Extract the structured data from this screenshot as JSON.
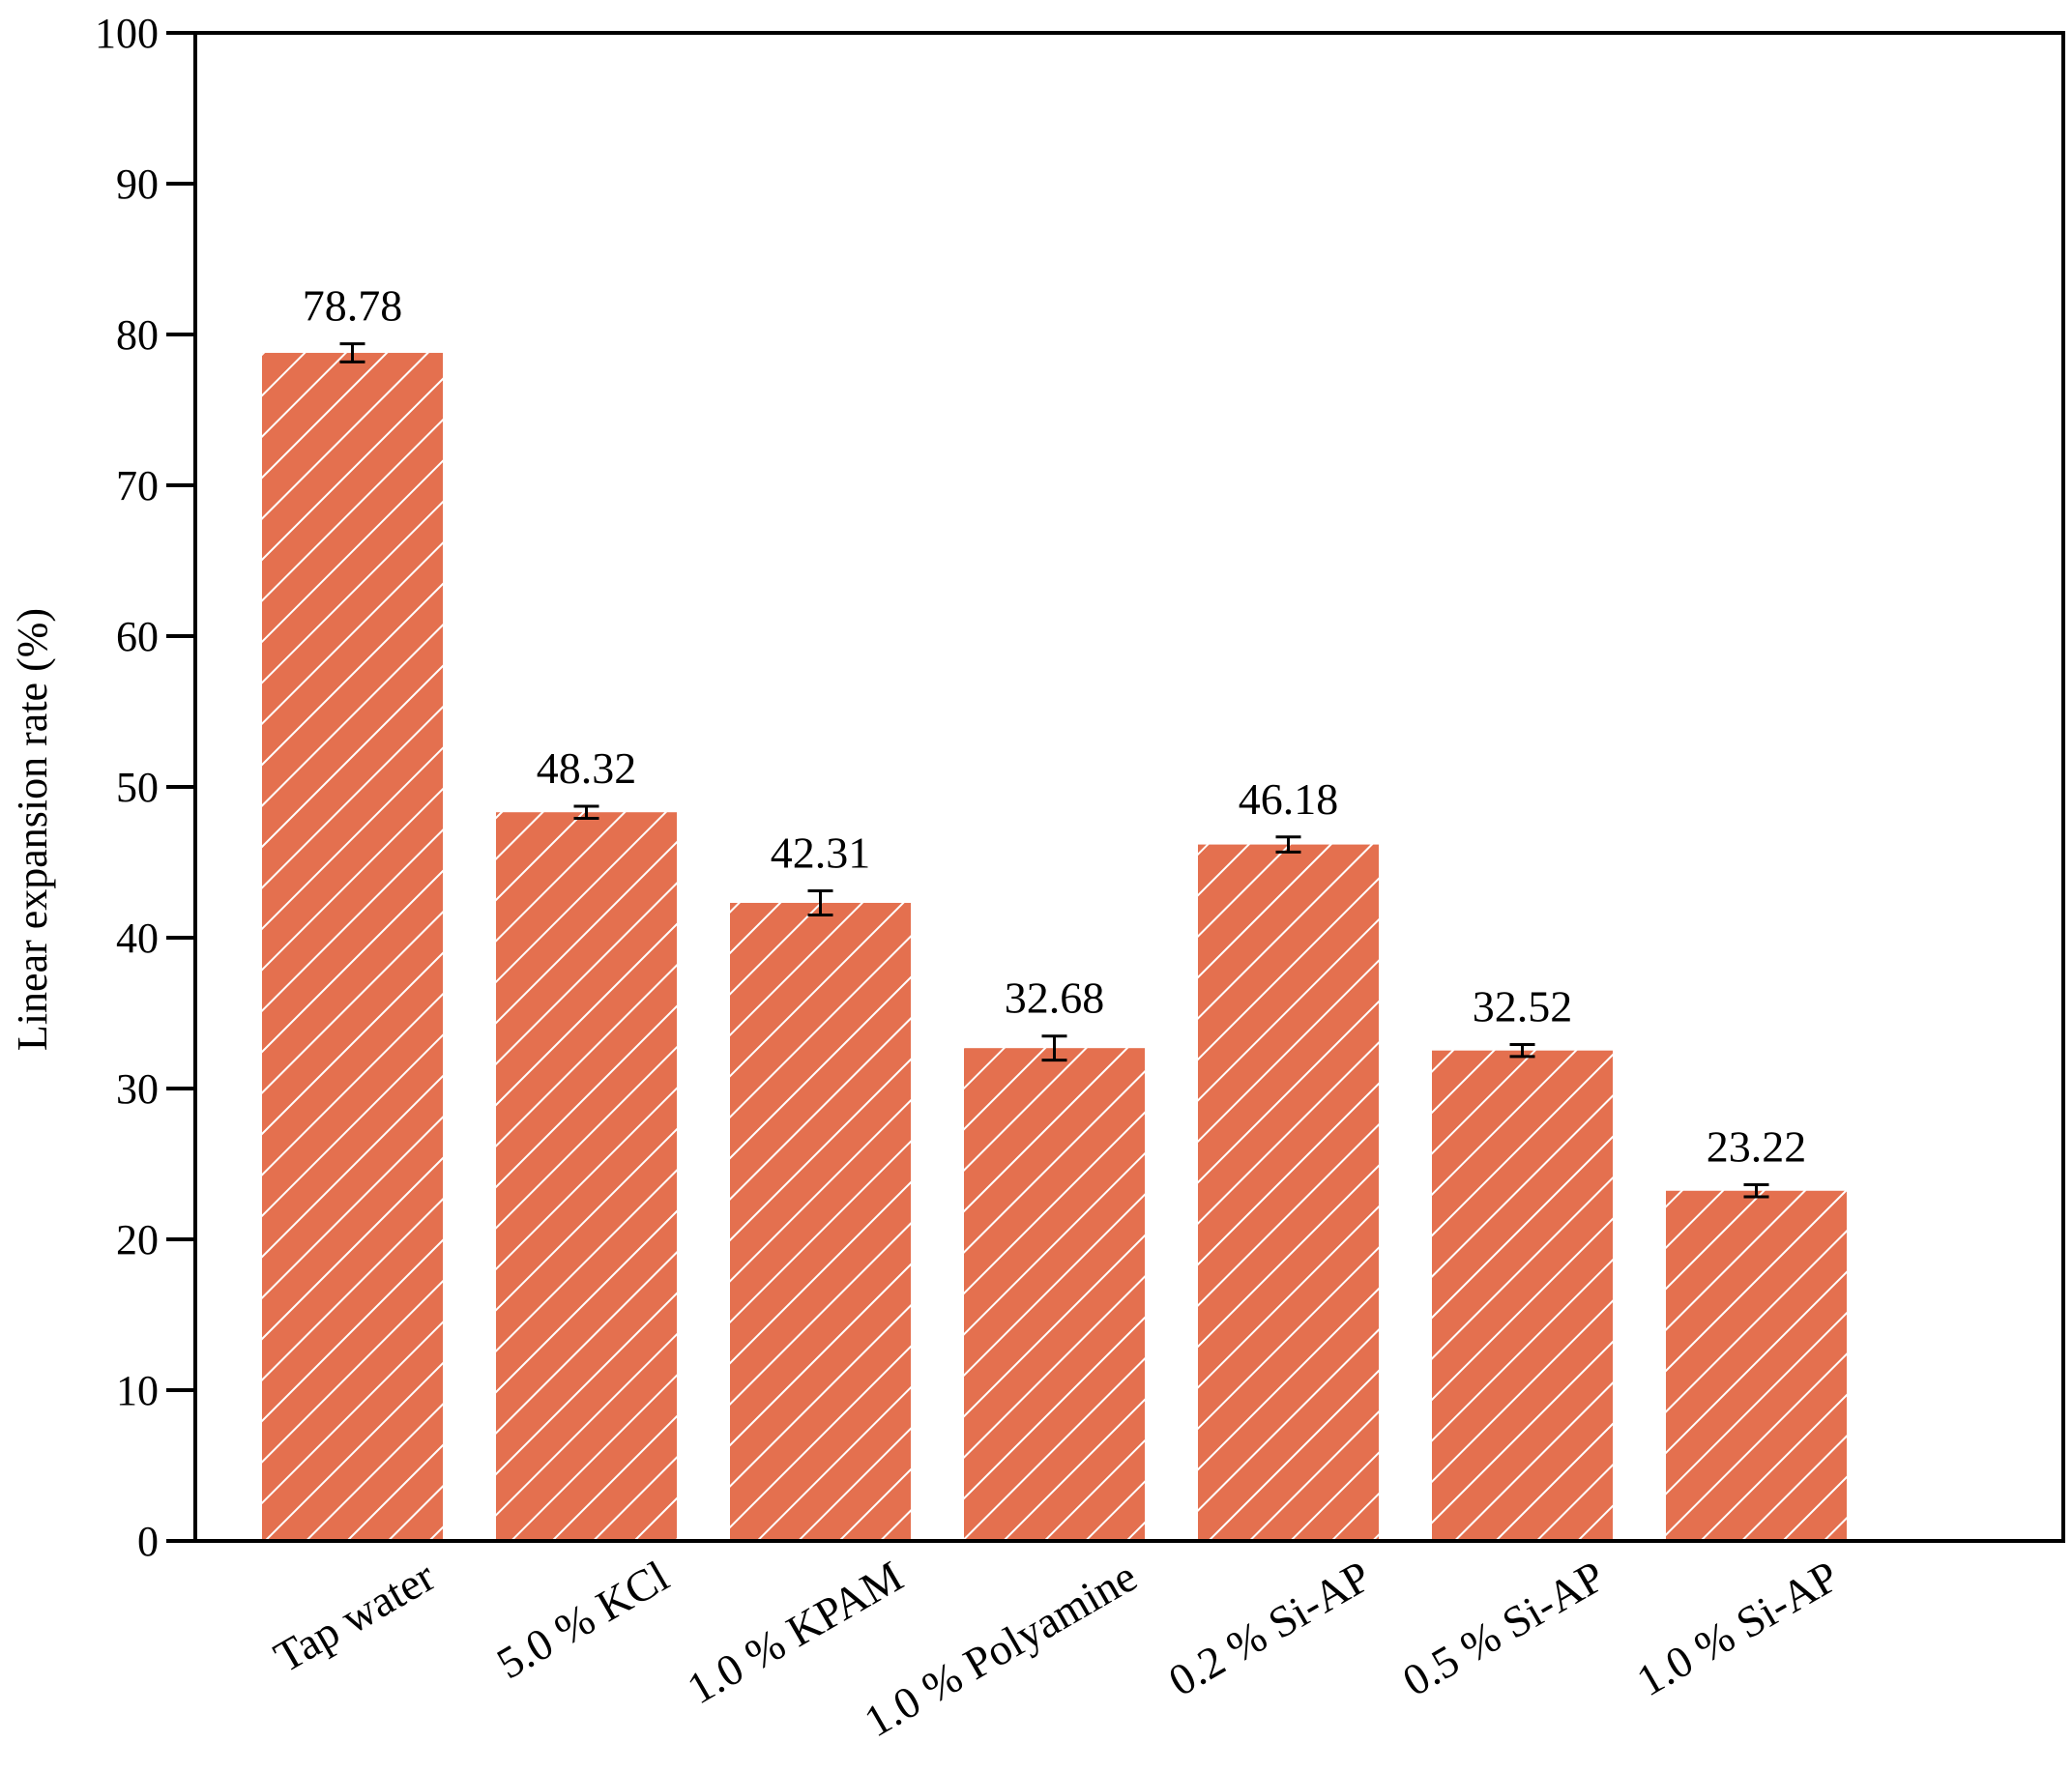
{
  "chart_data": {
    "type": "bar",
    "categories": [
      "Tap water",
      "5.0 % KCl",
      "1.0 % KPAM",
      "1.0 % Polyamine",
      "0.2 % Si-AP",
      "0.5 % Si-AP",
      "1.0 % Si-AP"
    ],
    "values": [
      78.78,
      48.32,
      42.31,
      32.68,
      46.18,
      32.52,
      23.22
    ],
    "data_labels": [
      "78.78",
      "48.32",
      "42.31",
      "32.68",
      "46.18",
      "32.52",
      "23.22"
    ],
    "error_bars": [
      0.6,
      0.4,
      0.8,
      0.8,
      0.5,
      0.4,
      0.4
    ],
    "title": "",
    "xlabel": "",
    "ylabel": "Linear expansion rate (%)",
    "ylim": [
      0,
      100
    ],
    "yticks": [
      0,
      10,
      20,
      30,
      40,
      50,
      60,
      70,
      80,
      90,
      100
    ],
    "ytick_labels": [
      "0",
      "10",
      "20",
      "30",
      "40",
      "50",
      "60",
      "70",
      "80",
      "90",
      "100"
    ],
    "grid": false,
    "legend": "none",
    "bar_color": "#e4704f",
    "hatch_color": "#ffffff",
    "hatch": "diagonal"
  }
}
